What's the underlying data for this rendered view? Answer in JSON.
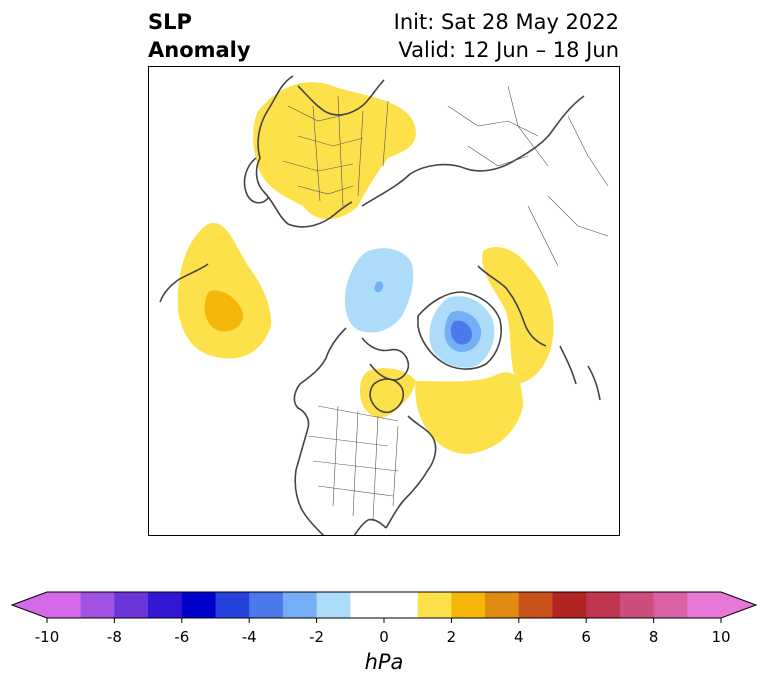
{
  "title": {
    "left_line1": "SLP",
    "left_line2": "Anomaly",
    "right_line1": "Init: Sat 28 May 2022",
    "right_line2": "Valid: 12 Jun – 18 Jun"
  },
  "colorbar": {
    "unit_label": "hPa",
    "ticks": [
      "-10",
      "-8",
      "-6",
      "-4",
      "-2",
      "0",
      "2",
      "4",
      "6",
      "8",
      "10"
    ],
    "tick_values": [
      -10,
      -8,
      -6,
      -4,
      -2,
      0,
      2,
      4,
      6,
      8,
      10
    ],
    "bins": [
      {
        "from": -10,
        "to": -9,
        "color": "#d56ae8"
      },
      {
        "from": -9,
        "to": -8,
        "color": "#a052e3"
      },
      {
        "from": -8,
        "to": -7,
        "color": "#6b35da"
      },
      {
        "from": -7,
        "to": -6,
        "color": "#3218d3"
      },
      {
        "from": -6,
        "to": -5,
        "color": "#0000cd"
      },
      {
        "from": -5,
        "to": -4,
        "color": "#2542dc"
      },
      {
        "from": -4,
        "to": -3,
        "color": "#4b78ea"
      },
      {
        "from": -3,
        "to": -2,
        "color": "#74aff5"
      },
      {
        "from": -2,
        "to": -1,
        "color": "#addbfa"
      },
      {
        "from": -1,
        "to": 1,
        "color": "#ffffff"
      },
      {
        "from": 1,
        "to": 2,
        "color": "#fde14a"
      },
      {
        "from": 2,
        "to": 3,
        "color": "#f3b609"
      },
      {
        "from": 3,
        "to": 4,
        "color": "#df8a11"
      },
      {
        "from": 4,
        "to": 5,
        "color": "#c85219"
      },
      {
        "from": 5,
        "to": 6,
        "color": "#b22422"
      },
      {
        "from": 6,
        "to": 7,
        "color": "#c03650"
      },
      {
        "from": 7,
        "to": 8,
        "color": "#cc4e7c"
      },
      {
        "from": 8,
        "to": 9,
        "color": "#d962a5"
      },
      {
        "from": 9,
        "to": 10,
        "color": "#e877d7"
      }
    ],
    "under_color": "#d56ae8",
    "over_color": "#e877d7"
  },
  "map": {
    "projection": "north-polar-stereographic",
    "region": "Northern Hemisphere",
    "border_color": "#444444",
    "anomalies": [
      {
        "name": "europe-positive",
        "sign": "positive",
        "level_hpa": 1
      },
      {
        "name": "north-pacific-positive",
        "sign": "positive",
        "level_hpa": 2
      },
      {
        "name": "greenland-negative",
        "sign": "negative",
        "level_hpa": -4
      },
      {
        "name": "arctic-negative",
        "sign": "negative",
        "level_hpa": -2
      },
      {
        "name": "east-asia-positive",
        "sign": "positive",
        "level_hpa": 1
      },
      {
        "name": "hudson-bay-positive",
        "sign": "positive",
        "level_hpa": 1
      },
      {
        "name": "north-atlantic-positive",
        "sign": "positive",
        "level_hpa": 1
      }
    ]
  }
}
